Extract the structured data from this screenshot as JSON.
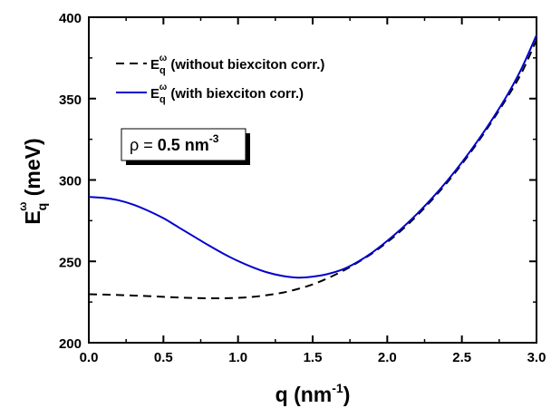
{
  "chart_data": {
    "type": "line",
    "xlabel": {
      "base": "q (nm",
      "sup": "-1",
      "tail": ")"
    },
    "ylabel": {
      "base": "E",
      "sub": "q",
      "sup": "ω",
      "tail": " (meV)"
    },
    "xlim": [
      0.0,
      3.0
    ],
    "ylim": [
      200,
      400
    ],
    "x_ticks": [
      "0.0",
      "0.5",
      "1.0",
      "1.5",
      "2.0",
      "2.5",
      "3.0"
    ],
    "y_ticks": [
      "200",
      "250",
      "300",
      "350",
      "400"
    ],
    "grid": false,
    "legend_position": "top-left",
    "annotation": {
      "prefix": "ρ = ",
      "value": "0.5 nm",
      "sup": "-3"
    },
    "series": [
      {
        "name": "E_q^ω (without biexciton corr.)",
        "legend": {
          "base": "E",
          "sub": "q",
          "sup": "ω",
          "tail": " (without biexciton corr.)"
        },
        "color": "#000000",
        "style": "dashed",
        "x": [
          0.0,
          0.1,
          0.2,
          0.3,
          0.4,
          0.5,
          0.6,
          0.7,
          0.8,
          0.9,
          1.0,
          1.1,
          1.2,
          1.3,
          1.4,
          1.5,
          1.6,
          1.7,
          1.8,
          1.9,
          2.0,
          2.1,
          2.2,
          2.3,
          2.4,
          2.5,
          2.6,
          2.7,
          2.8,
          2.9,
          3.0
        ],
        "y": [
          229.8,
          229.6,
          229.3,
          229.0,
          228.6,
          228.2,
          227.8,
          227.5,
          227.3,
          227.3,
          227.6,
          228.2,
          229.3,
          230.8,
          233.0,
          235.8,
          239.6,
          244.0,
          249.2,
          255.0,
          261.8,
          269.5,
          278.2,
          287.8,
          298.3,
          309.8,
          322.3,
          335.8,
          350.2,
          365.8,
          386.0
        ]
      },
      {
        "name": "E_q^ω (with biexciton corr.)",
        "legend": {
          "base": "E",
          "sub": "q",
          "sup": "ω",
          "tail": " (with biexciton corr.)"
        },
        "color": "#0000cc",
        "style": "solid",
        "x": [
          0.0,
          0.1,
          0.2,
          0.3,
          0.4,
          0.5,
          0.6,
          0.7,
          0.8,
          0.9,
          1.0,
          1.1,
          1.2,
          1.3,
          1.4,
          1.5,
          1.6,
          1.7,
          1.8,
          1.9,
          2.0,
          2.1,
          2.2,
          2.3,
          2.4,
          2.5,
          2.6,
          2.7,
          2.8,
          2.9,
          3.0
        ],
        "y": [
          289.6,
          289.0,
          287.5,
          284.8,
          281.0,
          276.5,
          271.0,
          265.5,
          260.0,
          254.8,
          250.2,
          246.3,
          243.1,
          241.0,
          240.0,
          240.6,
          242.2,
          245.0,
          249.6,
          255.5,
          262.6,
          270.5,
          279.2,
          288.8,
          299.3,
          310.8,
          323.3,
          336.8,
          351.5,
          368.5,
          389.0
        ]
      }
    ]
  }
}
